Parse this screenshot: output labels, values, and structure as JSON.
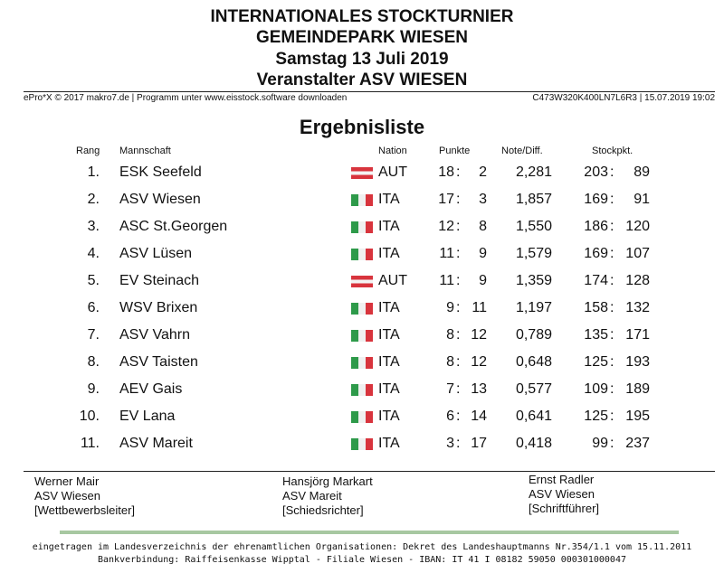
{
  "header": {
    "line1": "INTERNATIONALES STOCKTURNIER",
    "line2": "GEMEINDEPARK WIESEN",
    "line3": "Samstag 13 Juli 2019",
    "line4": "Veranstalter  ASV WIESEN"
  },
  "meta": {
    "left": "ePro*X © 2017 makro7.de | Programm unter www.eisstock.software downloaden",
    "right": "C473W320K400LN7L6R3 | 15.07.2019 19:02"
  },
  "title": "Ergebnisliste",
  "columns": {
    "rang": "Rang",
    "mannschaft": "Mannschaft",
    "nation": "Nation",
    "punkte": "Punkte",
    "note": "Note/Diff.",
    "stockpkt": "Stockpkt."
  },
  "rows": [
    {
      "rang": "1.",
      "team": "ESK Seefeld",
      "nation": "AUT",
      "p1": "18",
      "p2": "2",
      "note": "2,281",
      "s1": "203",
      "s2": "89"
    },
    {
      "rang": "2.",
      "team": "ASV Wiesen",
      "nation": "ITA",
      "p1": "17",
      "p2": "3",
      "note": "1,857",
      "s1": "169",
      "s2": "91"
    },
    {
      "rang": "3.",
      "team": "ASC St.Georgen",
      "nation": "ITA",
      "p1": "12",
      "p2": "8",
      "note": "1,550",
      "s1": "186",
      "s2": "120"
    },
    {
      "rang": "4.",
      "team": "ASV Lüsen",
      "nation": "ITA",
      "p1": "11",
      "p2": "9",
      "note": "1,579",
      "s1": "169",
      "s2": "107"
    },
    {
      "rang": "5.",
      "team": "EV Steinach",
      "nation": "AUT",
      "p1": "11",
      "p2": "9",
      "note": "1,359",
      "s1": "174",
      "s2": "128"
    },
    {
      "rang": "6.",
      "team": "WSV Brixen",
      "nation": "ITA",
      "p1": "9",
      "p2": "11",
      "note": "1,197",
      "s1": "158",
      "s2": "132"
    },
    {
      "rang": "7.",
      "team": "ASV Vahrn",
      "nation": "ITA",
      "p1": "8",
      "p2": "12",
      "note": "0,789",
      "s1": "135",
      "s2": "171"
    },
    {
      "rang": "8.",
      "team": "ASV Taisten",
      "nation": "ITA",
      "p1": "8",
      "p2": "12",
      "note": "0,648",
      "s1": "125",
      "s2": "193"
    },
    {
      "rang": "9.",
      "team": "AEV Gais",
      "nation": "ITA",
      "p1": "7",
      "p2": "13",
      "note": "0,577",
      "s1": "109",
      "s2": "189"
    },
    {
      "rang": "10.",
      "team": "EV Lana",
      "nation": "ITA",
      "p1": "6",
      "p2": "14",
      "note": "0,641",
      "s1": "125",
      "s2": "195"
    },
    {
      "rang": "11.",
      "team": "ASV Mareit",
      "nation": "ITA",
      "p1": "3",
      "p2": "17",
      "note": "0,418",
      "s1": "99",
      "s2": "237"
    }
  ],
  "signatures": [
    {
      "name": "Werner Mair",
      "club": "ASV Wiesen",
      "role": "[Wettbewerbsleiter]"
    },
    {
      "name": "Hansjörg Markart",
      "club": "ASV Mareit",
      "role": "[Schiedsrichter]"
    },
    {
      "name": "Ernst Radler",
      "club": "ASV Wiesen",
      "role": "[Schriftführer]"
    }
  ],
  "footer": {
    "line1": "eingetragen im Landesverzeichnis der ehrenamtlichen Organisationen: Dekret des Landeshauptmanns Nr.354/1.1 vom 15.11.2011",
    "line2": "Bankverbindung: Raiffeisenkasse Wipptal - Filiale Wiesen - IBAN: IT 41 I 08182 59050 000301000047"
  },
  "colors": {
    "aut_red": "#d8343d",
    "ita_green": "#2e9a4a",
    "ita_red": "#d8343d",
    "footer_bar": "#a7c8a1"
  }
}
